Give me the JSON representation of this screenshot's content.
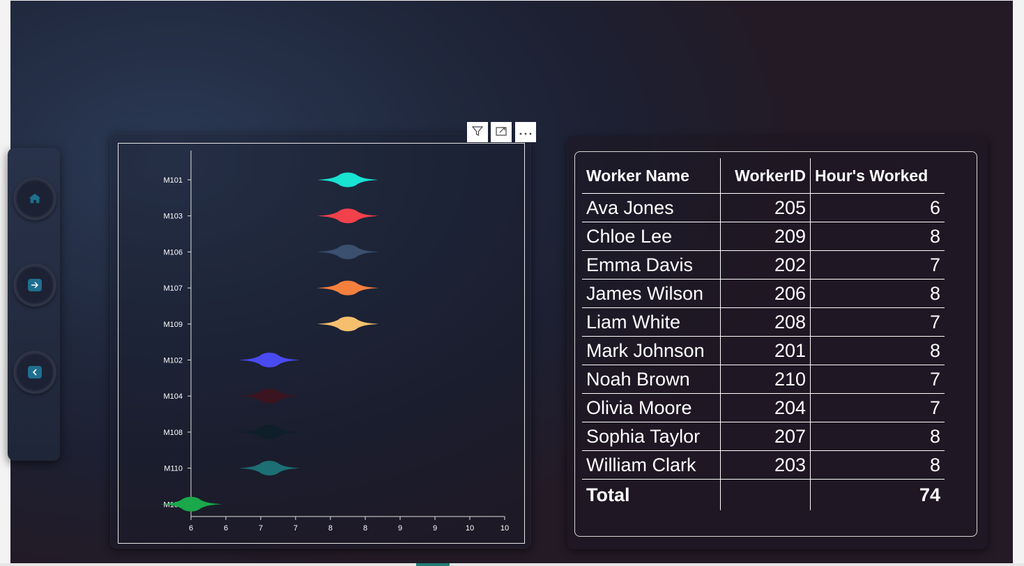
{
  "navigation": {
    "home_icon": "home-icon",
    "next_icon": "arrow-right-icon",
    "back_icon": "chevron-left-icon"
  },
  "visual_header": {
    "filter_icon": "filter-icon",
    "focus_icon": "focus-mode-icon",
    "more_icon": "more-options-icon"
  },
  "chart_data": {
    "type": "violin",
    "categories": [
      "M101",
      "M103",
      "M106",
      "M107",
      "M109",
      "M102",
      "M104",
      "M108",
      "M110",
      "M105"
    ],
    "values": [
      8,
      8,
      8,
      8,
      8,
      7,
      7,
      7,
      7,
      6
    ],
    "colors": [
      "#19e3d3",
      "#f2414b",
      "#3b4f6e",
      "#f5803e",
      "#f5bf6e",
      "#4a4af2",
      "#3a1420",
      "#0f1e28",
      "#1d6f73",
      "#1aa84a"
    ],
    "xticks": [
      "6",
      "6",
      "7",
      "7",
      "8",
      "8",
      "9",
      "9",
      "10",
      "10"
    ],
    "xlim": [
      6,
      10
    ],
    "title": "",
    "xlabel": "",
    "ylabel": "",
    "grid": false
  },
  "table": {
    "headers": [
      "Worker Name",
      "WorkerID",
      "Hour's Worked"
    ],
    "rows": [
      [
        "Ava Jones",
        "205",
        "6"
      ],
      [
        "Chloe Lee",
        "209",
        "8"
      ],
      [
        "Emma Davis",
        "202",
        "7"
      ],
      [
        "James Wilson",
        "206",
        "8"
      ],
      [
        "Liam White",
        "208",
        "7"
      ],
      [
        "Mark Johnson",
        "201",
        "8"
      ],
      [
        "Noah Brown",
        "210",
        "7"
      ],
      [
        "Olivia Moore",
        "204",
        "7"
      ],
      [
        "Sophia Taylor",
        "207",
        "8"
      ],
      [
        "William Clark",
        "203",
        "8"
      ]
    ],
    "total_label": "Total",
    "total_id": "",
    "total_hours": "74"
  }
}
